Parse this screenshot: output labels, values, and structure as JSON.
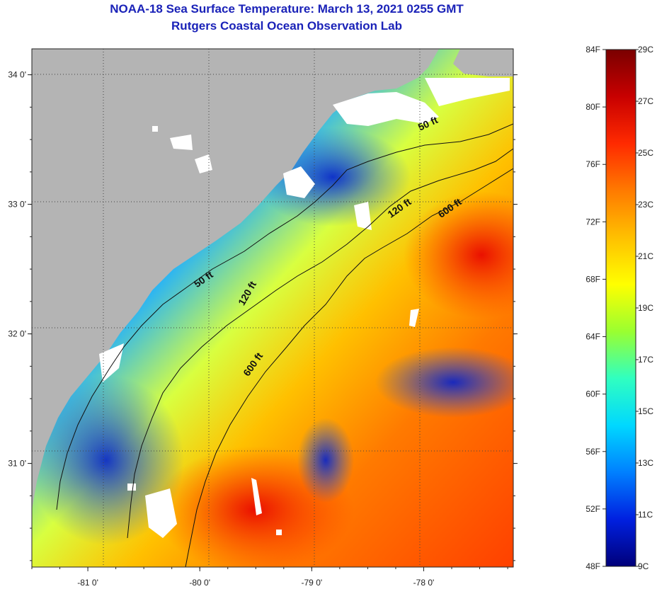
{
  "title": {
    "line1": "NOAA-18 Sea Surface Temperature:  March 13, 2021 0255 GMT",
    "line2": "Rutgers Coastal Ocean Observation Lab"
  },
  "map": {
    "lon_ticks": [
      {
        "value": -81,
        "label": "-81 0'"
      },
      {
        "value": -80,
        "label": "-80 0'"
      },
      {
        "value": -79,
        "label": "-79 0'"
      },
      {
        "value": -78,
        "label": "-78 0'"
      }
    ],
    "lat_ticks": [
      {
        "value": 34,
        "label": "34 0'"
      },
      {
        "value": 33,
        "label": "33 0'"
      },
      {
        "value": 32,
        "label": "32 0'"
      },
      {
        "value": 31,
        "label": "31 0'"
      }
    ],
    "extent": {
      "lon": [
        -81.5,
        -77.2
      ],
      "lat": [
        30.2,
        34.2
      ]
    },
    "contour_labels": [
      {
        "text": "50 ft",
        "lon": -77.95,
        "lat": 33.6
      },
      {
        "text": "120 ft",
        "lon": -78.2,
        "lat": 32.95
      },
      {
        "text": "600 ft",
        "lon": -77.75,
        "lat": 32.95
      },
      {
        "text": "50 ft",
        "lon": -79.95,
        "lat": 32.4
      },
      {
        "text": "120 ft",
        "lon": -79.55,
        "lat": 32.3
      },
      {
        "text": "600 ft",
        "lon": -79.5,
        "lat": 31.75
      }
    ],
    "colors": {
      "land": "#b4b4b4",
      "cloud": "#ffffff",
      "contour": "#111111"
    }
  },
  "colorbar": {
    "fahrenheit_labels": [
      "84F",
      "80F",
      "76F",
      "72F",
      "68F",
      "64F",
      "60F",
      "56F",
      "52F",
      "48F"
    ],
    "celsius_labels": [
      "29C",
      "27C",
      "25C",
      "23C",
      "21C",
      "19C",
      "17C",
      "15C",
      "13C",
      "11C",
      "9C"
    ],
    "range_f": [
      48,
      84
    ],
    "range_c": [
      9,
      29
    ],
    "gradient": [
      "#7a0000",
      "#c80000",
      "#ff2a00",
      "#ff7a00",
      "#ffc000",
      "#ffff00",
      "#9aff30",
      "#30ffc0",
      "#00d8ff",
      "#0080ff",
      "#0020e0",
      "#00007a"
    ]
  }
}
